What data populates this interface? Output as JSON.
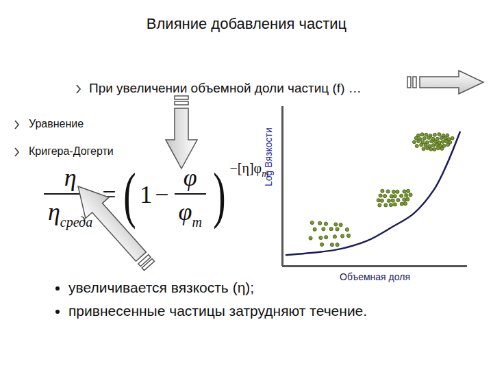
{
  "title": "Влияние добавления частиц",
  "lead": "При увеличении объемной доли частиц (f) …",
  "equation_caption": [
    "Уравнение",
    "Кригера-Догерти"
  ],
  "equation": {
    "lhs_num": "η",
    "lhs_den": "η",
    "lhs_den_sub": "среда",
    "equals": "=",
    "open": "(",
    "one": "1",
    "minus": "−",
    "frac_num": "φ",
    "frac_den": "φ",
    "frac_den_sub": "m",
    "close": ")",
    "exponent": "−[η]φ",
    "exponent_sub": "m"
  },
  "conclusions": [
    "увеличивается вязкость (η);",
    "привнесенные частицы затрудняют течение."
  ],
  "chart_data": {
    "type": "line",
    "x": [
      0.02,
      0.21,
      0.32,
      0.46,
      0.6,
      0.71,
      0.82,
      0.89,
      0.96
    ],
    "values": [
      0.07,
      0.09,
      0.11,
      0.16,
      0.25,
      0.33,
      0.48,
      0.64,
      0.84
    ],
    "xlabel": "Объемная доля",
    "ylabel": "Log Вязкости",
    "xlim": [
      0,
      1
    ],
    "ylim": [
      0,
      1
    ],
    "tick_labels": false,
    "color": "#1b1b5c"
  }
}
